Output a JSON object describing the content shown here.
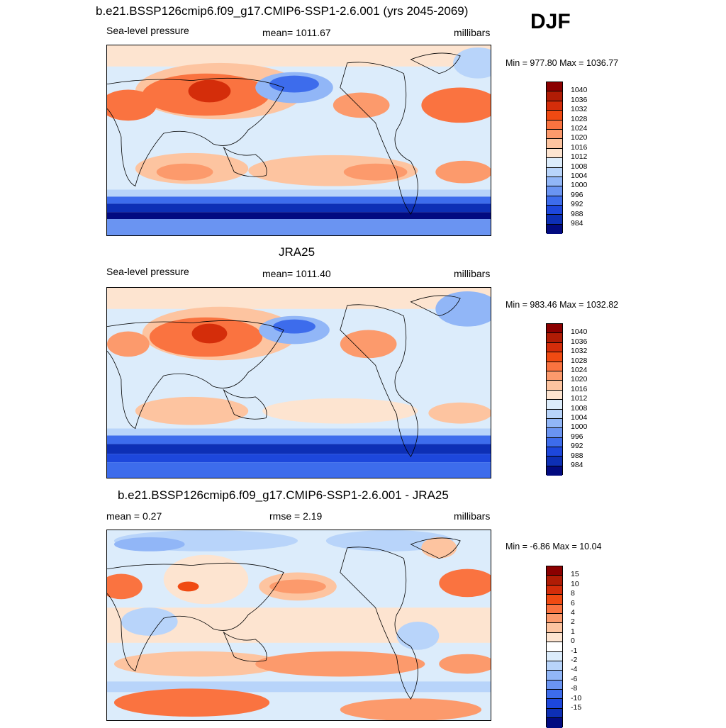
{
  "season": "DJF",
  "panels": [
    {
      "id": "model",
      "title": "b.e21.BSSP126cmip6.f09_g17.CMIP6-SSP1-2.6.001 (yrs 2045-2069)",
      "left_label": "Sea-level pressure",
      "center_label": "mean= 1011.67",
      "right_label": "millibars",
      "minmax": "Min = 977.80 Max = 1036.77",
      "field_type": "slp"
    },
    {
      "id": "obs",
      "title": "JRA25",
      "left_label": "Sea-level pressure",
      "center_label": "mean= 1011.40",
      "right_label": "millibars",
      "minmax": "Min = 983.46 Max = 1032.82",
      "field_type": "slp"
    },
    {
      "id": "diff",
      "title": "b.e21.BSSP126cmip6.f09_g17.CMIP6-SSP1-2.6.001 - JRA25",
      "left_label": "mean =   0.27",
      "center_label": "rmse =   2.19",
      "right_label": "millibars",
      "minmax": "Min =  -6.86 Max =  10.04",
      "field_type": "diff"
    }
  ],
  "colorbars": {
    "slp": {
      "colors": [
        "#8b0000",
        "#b01c05",
        "#d42d0a",
        "#f04a12",
        "#fa7340",
        "#fc9a6c",
        "#fdc4a0",
        "#fde4d0",
        "#dcecfb",
        "#b8d4fa",
        "#91b6f7",
        "#6a94f2",
        "#3d6cec",
        "#1d47dc",
        "#0d2fb5",
        "#020a80"
      ],
      "labels": [
        "1040",
        "1036",
        "1032",
        "1028",
        "1024",
        "1020",
        "1016",
        "1012",
        "1008",
        "1004",
        "1000",
        "996",
        "992",
        "988",
        "984"
      ]
    },
    "diff": {
      "colors": [
        "#8b0000",
        "#b01c05",
        "#d42d0a",
        "#f04a12",
        "#fa7340",
        "#fc9a6c",
        "#fdc4a0",
        "#fde4d0",
        "#ffffff",
        "#dcecfb",
        "#b8d4fa",
        "#91b6f7",
        "#6a94f2",
        "#3d6cec",
        "#1d47dc",
        "#0d2fb5",
        "#020a80"
      ],
      "labels": [
        "15",
        "10",
        "8",
        "6",
        "4",
        "2",
        "1",
        "0",
        "-1",
        "-2",
        "-4",
        "-6",
        "-8",
        "-10",
        "-15"
      ]
    }
  }
}
